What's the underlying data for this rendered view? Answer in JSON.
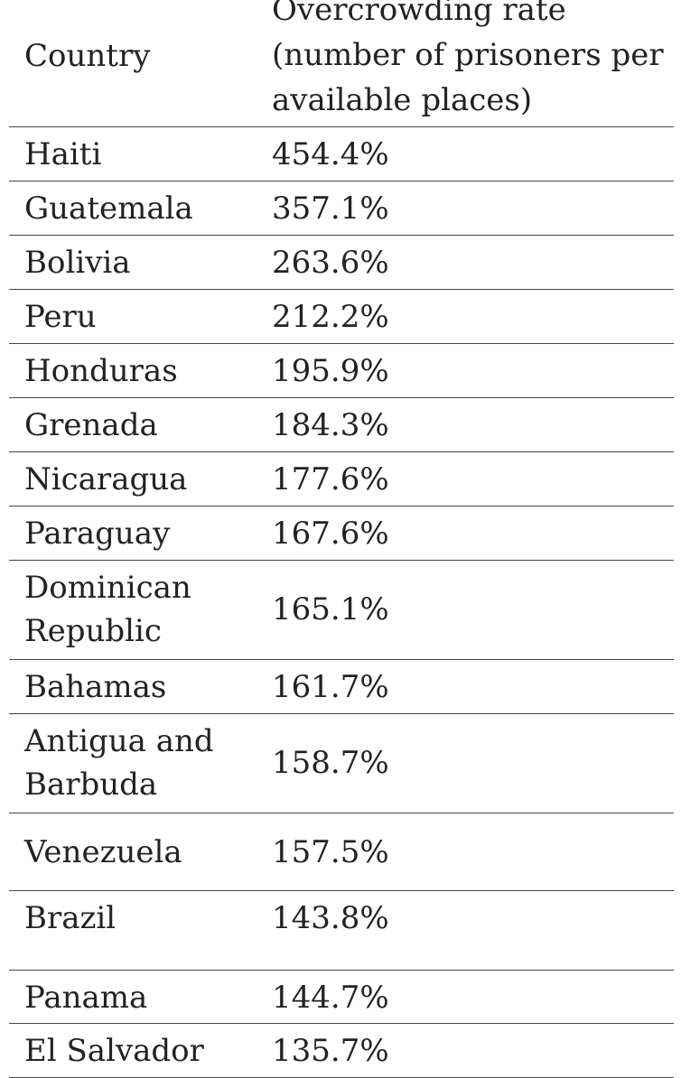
{
  "header": {
    "country": "Country",
    "rate": "Overcrowding rate (number of prisoners per available places)"
  },
  "rows": [
    {
      "country": "Haiti",
      "rate": "454.4%"
    },
    {
      "country": "Guatemala",
      "rate": "357.1%"
    },
    {
      "country": "Bolivia",
      "rate": "263.6%"
    },
    {
      "country": "Peru",
      "rate": "212.2%"
    },
    {
      "country": "Honduras",
      "rate": "195.9%"
    },
    {
      "country": "Grenada",
      "rate": "184.3%"
    },
    {
      "country": "Nicaragua",
      "rate": "177.6%"
    },
    {
      "country": "Paraguay",
      "rate": "167.6%"
    },
    {
      "country": "Dominican Republic",
      "rate": "165.1%"
    },
    {
      "country": "Bahamas",
      "rate": "161.7%"
    },
    {
      "country": "Antigua and Barbuda",
      "rate": "158.7%"
    },
    {
      "country": "Venezuela",
      "rate": "157.5%"
    },
    {
      "country": "Brazil",
      "rate": "143.8%"
    },
    {
      "country": "Panama",
      "rate": "144.7%"
    },
    {
      "country": "El Salvador",
      "rate": "135.7%"
    }
  ]
}
